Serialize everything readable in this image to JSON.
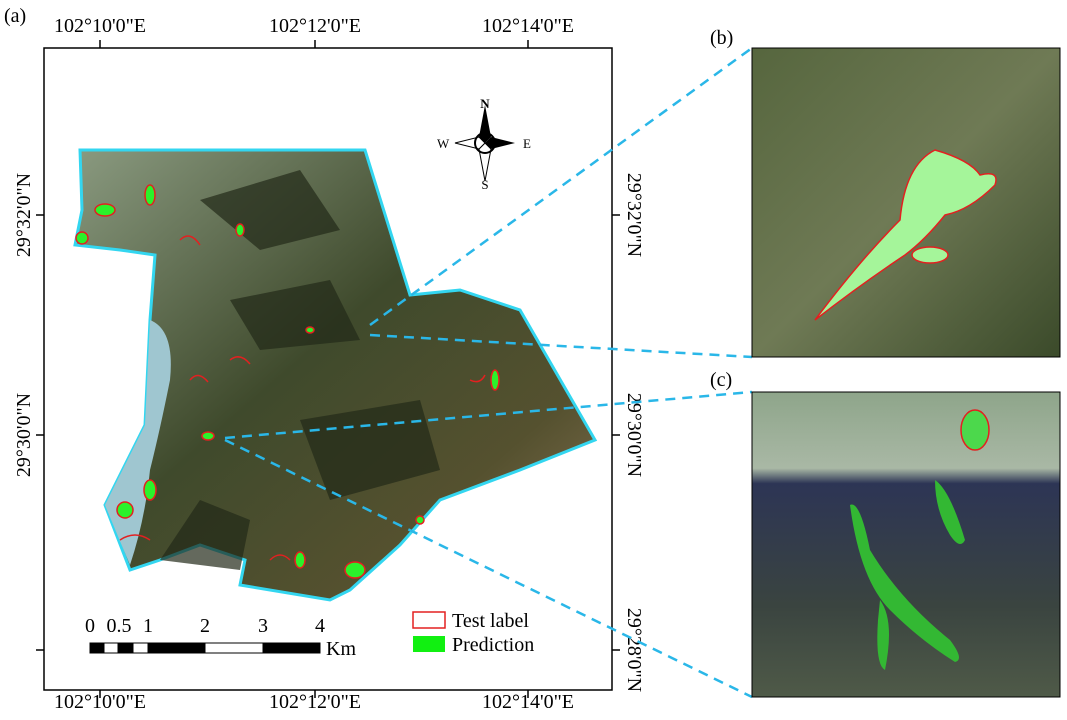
{
  "panels": {
    "a": {
      "label": "(a)"
    },
    "b": {
      "label": "(b)"
    },
    "c": {
      "label": "(c)"
    }
  },
  "axes": {
    "top": [
      "102°10'0\"E",
      "102°12'0\"E",
      "102°14'0\"E"
    ],
    "bottom": [
      "102°10'0\"E",
      "102°12'0\"E",
      "102°14'0\"E"
    ],
    "left": [
      "29°32'0\"N",
      "29°30'0\"N"
    ],
    "right": [
      "29°32'0\"N",
      "29°30'0\"N",
      "29°28'0\"N"
    ]
  },
  "compass": {
    "n": "N",
    "s": "S",
    "e": "E",
    "w": "W"
  },
  "scale_bar": {
    "labels": [
      "0",
      "0.5",
      "1",
      "2",
      "3",
      "4"
    ],
    "unit": "Km"
  },
  "legend": {
    "items": [
      "Test label",
      "Prediction"
    ]
  }
}
